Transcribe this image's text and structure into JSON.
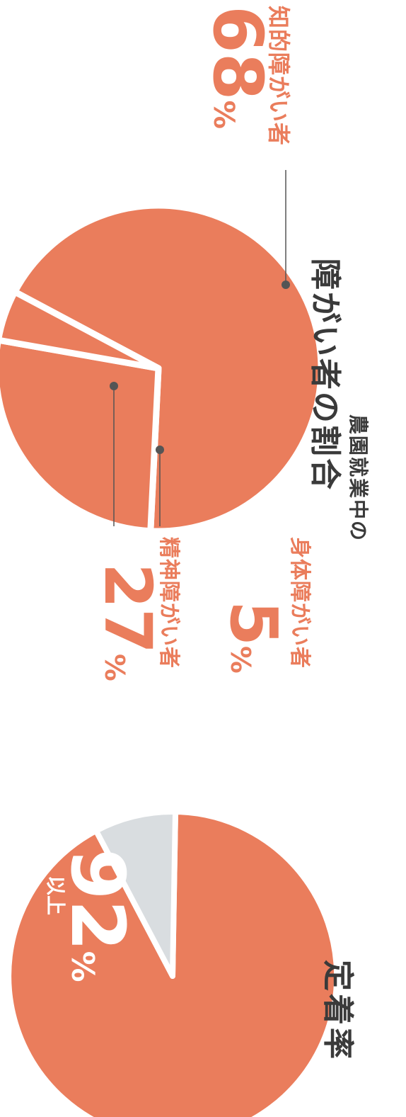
{
  "colors": {
    "slice": "#ea7d5c",
    "slice_alt": "#d9dde0",
    "text_dark": "#3a3a3a",
    "label": "#ea7d5c",
    "leader": "#555555"
  },
  "retention": {
    "title": "定着率",
    "value_text": "92",
    "unit": "%",
    "qualifier": "以上"
  },
  "disability": {
    "subtitle": "農園就業中の",
    "title": "障がい者の割合",
    "labels": [
      {
        "name": "知的障がい者",
        "value_text": "68",
        "unit": "%"
      },
      {
        "name": "精神障がい者",
        "value_text": "27",
        "unit": "%"
      },
      {
        "name": "身体障がい者",
        "value_text": "5",
        "unit": "%"
      }
    ]
  },
  "chart_data": [
    {
      "type": "pie",
      "title": "定着率",
      "slices": [
        {
          "label": "",
          "value": 92,
          "color": "#ea7d5c"
        },
        {
          "label": "",
          "value": 8,
          "color": "#d9dde0"
        }
      ]
    },
    {
      "type": "pie",
      "title": "障がい者の割合",
      "slices": [
        {
          "label": "知的障がい者",
          "value": 68,
          "color": "#ea7d5c"
        },
        {
          "label": "精神障がい者",
          "value": 27,
          "color": "#ea7d5c"
        },
        {
          "label": "身体障がい者",
          "value": 5,
          "color": "#ea7d5c"
        }
      ]
    }
  ]
}
